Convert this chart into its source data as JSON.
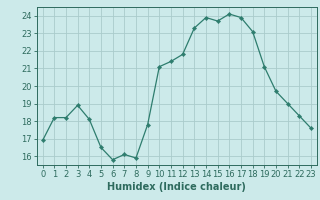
{
  "x": [
    0,
    1,
    2,
    3,
    4,
    5,
    6,
    7,
    8,
    9,
    10,
    11,
    12,
    13,
    14,
    15,
    16,
    17,
    18,
    19,
    20,
    21,
    22,
    23
  ],
  "y": [
    16.9,
    18.2,
    18.2,
    18.9,
    18.1,
    16.5,
    15.8,
    16.1,
    15.9,
    17.8,
    21.1,
    21.4,
    21.8,
    23.3,
    23.9,
    23.7,
    24.1,
    23.9,
    23.1,
    21.1,
    19.7,
    19.0,
    18.3,
    17.6
  ],
  "line_color": "#2e7d6e",
  "marker": "D",
  "marker_size": 2.2,
  "bg_color": "#cceaea",
  "grid_color": "#aacccc",
  "xlabel": "Humidex (Indice chaleur)",
  "xlim": [
    -0.5,
    23.5
  ],
  "ylim": [
    15.5,
    24.5
  ],
  "yticks": [
    16,
    17,
    18,
    19,
    20,
    21,
    22,
    23,
    24
  ],
  "xticks": [
    0,
    1,
    2,
    3,
    4,
    5,
    6,
    7,
    8,
    9,
    10,
    11,
    12,
    13,
    14,
    15,
    16,
    17,
    18,
    19,
    20,
    21,
    22,
    23
  ],
  "tick_color": "#2e6b5e",
  "label_fontsize": 7.0,
  "tick_fontsize": 6.0
}
